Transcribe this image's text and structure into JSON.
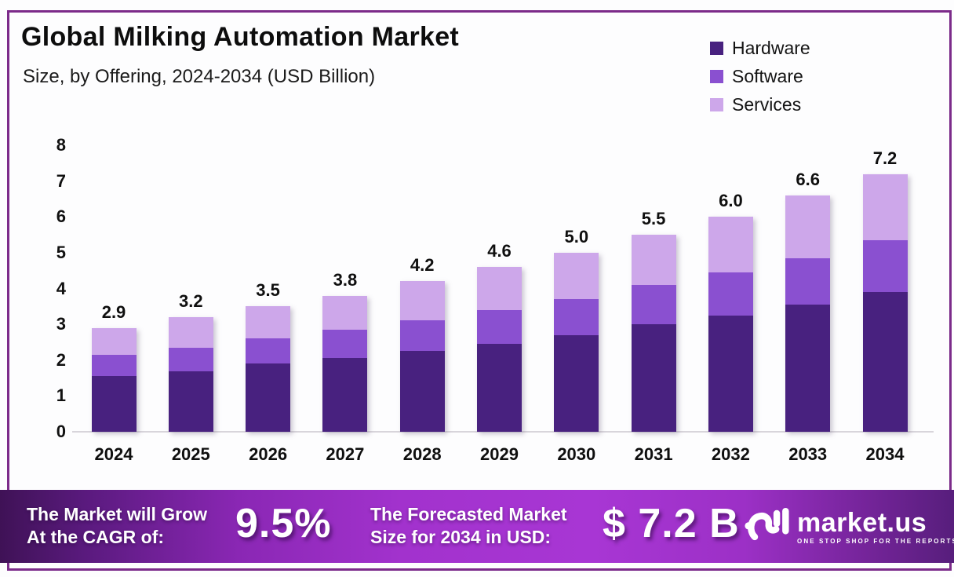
{
  "meta": {
    "title": "Global Milking Automation Market",
    "subtitle": "Size, by Offering, 2024-2034 (USD Billion)"
  },
  "legend": [
    {
      "label": "Hardware",
      "color": "#48217f"
    },
    {
      "label": "Software",
      "color": "#8a50d0"
    },
    {
      "label": "Services",
      "color": "#cda7ea"
    }
  ],
  "chart_data": {
    "type": "bar",
    "stacked": true,
    "title": "Global Milking Automation Market Size, by Offering, 2024-2034 (USD Billion)",
    "categories": [
      "2024",
      "2025",
      "2026",
      "2027",
      "2028",
      "2029",
      "2030",
      "2031",
      "2032",
      "2033",
      "2034"
    ],
    "series": [
      {
        "name": "Hardware",
        "color": "#48217f",
        "values": [
          1.55,
          1.7,
          1.9,
          2.05,
          2.25,
          2.45,
          2.7,
          3.0,
          3.25,
          3.55,
          3.9
        ]
      },
      {
        "name": "Software",
        "color": "#8a50d0",
        "values": [
          0.6,
          0.65,
          0.7,
          0.8,
          0.85,
          0.95,
          1.0,
          1.1,
          1.2,
          1.3,
          1.45
        ]
      },
      {
        "name": "Services",
        "color": "#cda7ea",
        "values": [
          0.75,
          0.85,
          0.9,
          0.95,
          1.1,
          1.2,
          1.3,
          1.4,
          1.55,
          1.75,
          1.85
        ]
      }
    ],
    "totals": [
      2.9,
      3.2,
      3.5,
      3.8,
      4.2,
      4.6,
      5.0,
      5.5,
      6.0,
      6.6,
      7.2
    ],
    "total_labels": [
      "2.9",
      "3.2",
      "3.5",
      "3.8",
      "4.2",
      "4.6",
      "5.0",
      "5.5",
      "6.0",
      "6.6",
      "7.2"
    ],
    "xlabel": "",
    "ylabel": "",
    "ylim": [
      0,
      8
    ],
    "y_ticks": [
      0,
      1,
      2,
      3,
      4,
      5,
      6,
      7,
      8
    ],
    "grid": false,
    "legend_position": "top-right"
  },
  "banner": {
    "cagr_label_line1": "The Market will Grow",
    "cagr_label_line2": "At the CAGR of:",
    "cagr_value": "9.5%",
    "forecast_label_line1": "The Forecasted Market",
    "forecast_label_line2": "Size for 2034 in USD:",
    "forecast_value": "$ 7.2 B",
    "brand": {
      "name": "market.us",
      "tagline": "ONE STOP SHOP FOR THE REPORTS"
    }
  }
}
